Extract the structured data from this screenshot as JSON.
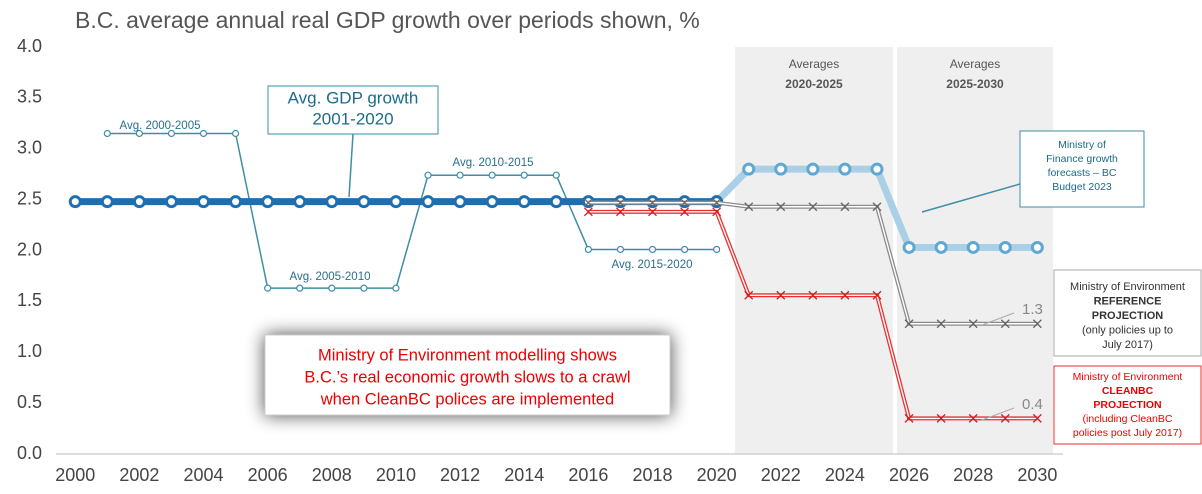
{
  "chart_data": {
    "type": "line",
    "title": "B.C. average annual real GDP growth over periods shown, %",
    "xlim": [
      1999.4,
      2030.8
    ],
    "xticks": [
      2000,
      2002,
      2004,
      2006,
      2008,
      2010,
      2012,
      2014,
      2016,
      2018,
      2020,
      2022,
      2024,
      2026,
      2028,
      2030
    ],
    "ylim": [
      0,
      4
    ],
    "yticks": [
      {
        "value": 0,
        "label": "0.0"
      },
      {
        "value": 0.5,
        "label": "0.5"
      },
      {
        "value": 1,
        "label": "1.0"
      },
      {
        "value": 1.5,
        "label": "1.5"
      },
      {
        "value": 2,
        "label": "2.0"
      },
      {
        "value": 2.5,
        "label": "2.5"
      },
      {
        "value": 3,
        "label": "3.0"
      },
      {
        "value": 3.5,
        "label": "3.5"
      },
      {
        "value": 4,
        "label": "4.0"
      }
    ],
    "series": [
      {
        "color": "#c8dcea",
        "width": 1.5,
        "marker": "circle",
        "x": [
          2001,
          2002,
          2003,
          2004,
          2005,
          2006,
          2007,
          2008,
          2009,
          2010,
          2011,
          2012,
          2013,
          2014,
          2015,
          2016,
          2017,
          2018,
          2019,
          2020
        ],
        "values": [
          3.15,
          3.15,
          3.15,
          3.15,
          3.15,
          1.63,
          1.63,
          1.63,
          1.63,
          1.63,
          2.74,
          2.74,
          2.74,
          2.74,
          2.74,
          2.01,
          2.01,
          2.01,
          2.01,
          2.01
        ]
      },
      {
        "color": "#a9d0e6",
        "width": 7,
        "marker": "circle",
        "x": [
          2020,
          2021,
          2022,
          2023,
          2024,
          2025,
          2026,
          2027,
          2028,
          2029,
          2030
        ],
        "values": [
          2.48,
          2.8,
          2.8,
          2.8,
          2.8,
          2.8,
          2.03,
          2.03,
          2.03,
          2.03,
          2.03
        ]
      },
      {
        "color": "#1f6fb0",
        "width": 7,
        "marker": "circle",
        "x": [
          2000,
          2001,
          2002,
          2003,
          2004,
          2005,
          2006,
          2007,
          2008,
          2009,
          2010,
          2011,
          2012,
          2013,
          2014,
          2015,
          2016,
          2017,
          2018,
          2019,
          2020
        ],
        "values": [
          2.48,
          2.48,
          2.48,
          2.48,
          2.48,
          2.48,
          2.48,
          2.48,
          2.48,
          2.48,
          2.48,
          2.48,
          2.48,
          2.48,
          2.48,
          2.48,
          2.48,
          2.48,
          2.48,
          2.48,
          2.48
        ]
      },
      {
        "color": "#8c8c8c",
        "width": 4,
        "marker": "x",
        "x": [
          2016,
          2017,
          2018,
          2019,
          2020,
          2021,
          2022,
          2023,
          2024,
          2025,
          2026,
          2027,
          2028,
          2029,
          2030
        ],
        "values": [
          2.47,
          2.47,
          2.47,
          2.47,
          2.47,
          2.43,
          2.43,
          2.43,
          2.43,
          2.43,
          1.28,
          1.28,
          1.28,
          1.28,
          1.28
        ]
      },
      {
        "color": "#e8312f",
        "width": 4,
        "marker": "x",
        "x": [
          2016,
          2017,
          2018,
          2019,
          2020,
          2021,
          2022,
          2023,
          2024,
          2025,
          2026,
          2027,
          2028,
          2029,
          2030
        ],
        "values": [
          2.38,
          2.38,
          2.38,
          2.38,
          2.38,
          1.56,
          1.56,
          1.56,
          1.56,
          1.56,
          0.35,
          0.35,
          0.35,
          0.35,
          0.35
        ]
      }
    ],
    "shaded_periods": [
      {
        "lines": [
          "Averages",
          "2020-2025"
        ]
      },
      {
        "lines": [
          "Averages",
          "2025-2030"
        ]
      }
    ],
    "segment_labels": [
      "Avg. 2000-2005",
      "Avg. 2005-2010",
      "Avg. 2010-2015",
      "Avg. 2015-2020"
    ],
    "callouts": [
      {
        "lines": [
          "Avg. GDP growth",
          "2001-2020"
        ]
      },
      {
        "lines": [
          "Ministry of",
          "Finance growth",
          "forecasts – BC",
          "Budget 2023"
        ]
      },
      {
        "lines": [
          "Ministry of Environment",
          "REFERENCE",
          "PROJECTION",
          "(only policies up to",
          "July 2017)"
        ]
      },
      {
        "lines": [
          "Ministry of Environment",
          "CLEANBC",
          "PROJECTION",
          "(including CleanBC",
          "policies post July 2017)"
        ]
      },
      {
        "lines": [
          "Ministry of Environment modelling shows",
          "B.C.’s real economic growth slows to a crawl",
          "when CleanBC polices are implemented"
        ]
      }
    ],
    "end_labels": [
      "1.3",
      "0.4"
    ]
  }
}
